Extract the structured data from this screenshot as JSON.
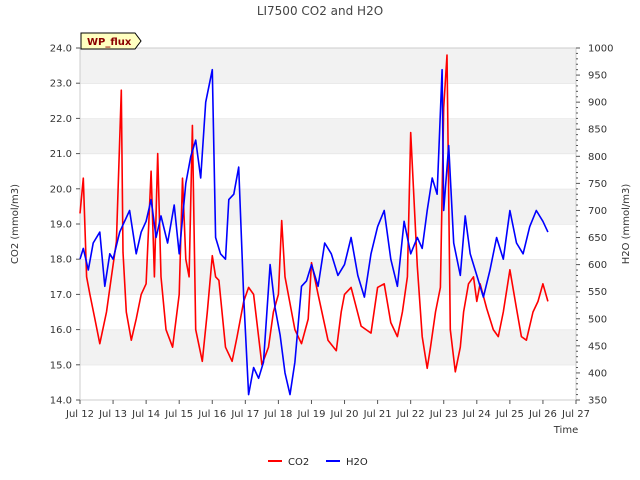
{
  "chart_data": {
    "type": "line",
    "title": "LI7500 CO2 and H2O",
    "badge": "WP_flux",
    "xlabel": "Time",
    "ylabel_left": "CO2 (mmol/m3)",
    "ylabel_right": "H2O (mmol/m3)",
    "x_ticks": [
      "Jul 12",
      "Jul 13",
      "Jul 14",
      "Jul 15",
      "Jul 16",
      "Jul 17",
      "Jul 18",
      "Jul 19",
      "Jul 20",
      "Jul 21",
      "Jul 22",
      "Jul 23",
      "Jul 24",
      "Jul 25",
      "Jul 26",
      "Jul 27"
    ],
    "xlim": [
      12,
      27
    ],
    "ylim_left": [
      14.0,
      24.0
    ],
    "ylim_right": [
      350,
      1000
    ],
    "y_ticks_left": [
      "14.0",
      "15.0",
      "16.0",
      "17.0",
      "18.0",
      "19.0",
      "20.0",
      "21.0",
      "22.0",
      "23.0",
      "24.0"
    ],
    "y_ticks_right": [
      "350",
      "400",
      "450",
      "500",
      "550",
      "600",
      "650",
      "700",
      "750",
      "800",
      "850",
      "900",
      "950",
      "1000"
    ],
    "grid": "horizontal bands",
    "legend_position": "bottom-center",
    "series": [
      {
        "name": "CO2",
        "axis": "left",
        "color": "#ff0000",
        "x": [
          12.0,
          12.1,
          12.2,
          12.3,
          12.45,
          12.6,
          12.8,
          12.95,
          13.1,
          13.25,
          13.3,
          13.4,
          13.55,
          13.7,
          13.85,
          14.0,
          14.15,
          14.25,
          14.35,
          14.45,
          14.6,
          14.8,
          15.0,
          15.1,
          15.2,
          15.3,
          15.4,
          15.5,
          15.7,
          15.85,
          16.0,
          16.1,
          16.2,
          16.4,
          16.6,
          16.75,
          16.95,
          17.1,
          17.25,
          17.5,
          17.7,
          17.85,
          18.0,
          18.1,
          18.2,
          18.3,
          18.5,
          18.7,
          18.9,
          19.0,
          19.2,
          19.5,
          19.75,
          19.9,
          20.0,
          20.2,
          20.5,
          20.8,
          21.0,
          21.2,
          21.4,
          21.6,
          21.75,
          21.9,
          22.0,
          22.2,
          22.35,
          22.5,
          22.6,
          22.75,
          22.9,
          23.0,
          23.1,
          23.2,
          23.35,
          23.5,
          23.6,
          23.75,
          23.9,
          24.0,
          24.1,
          24.3,
          24.5,
          24.65,
          24.8,
          25.0,
          25.2,
          25.35,
          25.5,
          25.7,
          25.85,
          26.0,
          26.15
        ],
        "y": [
          19.3,
          20.3,
          17.5,
          17.0,
          16.3,
          15.6,
          16.5,
          17.5,
          18.5,
          22.8,
          18.2,
          16.5,
          15.7,
          16.3,
          17.0,
          17.3,
          20.5,
          17.5,
          21.0,
          17.5,
          16.0,
          15.5,
          17.0,
          20.3,
          18.0,
          17.5,
          21.8,
          16.0,
          15.1,
          16.5,
          18.1,
          17.5,
          17.4,
          15.5,
          15.1,
          15.8,
          16.8,
          17.2,
          17.0,
          15.0,
          15.5,
          16.5,
          17.0,
          19.1,
          17.5,
          17.0,
          16.0,
          15.6,
          16.3,
          17.9,
          17.0,
          15.7,
          15.4,
          16.5,
          17.0,
          17.2,
          16.1,
          15.9,
          17.2,
          17.3,
          16.2,
          15.8,
          16.5,
          17.5,
          21.6,
          17.8,
          15.8,
          14.9,
          15.5,
          16.5,
          17.2,
          22.3,
          23.8,
          16.0,
          14.8,
          15.5,
          16.5,
          17.3,
          17.5,
          16.8,
          17.3,
          16.6,
          16.0,
          15.8,
          16.5,
          17.7,
          16.6,
          15.8,
          15.7,
          16.5,
          16.8,
          17.3,
          16.8
        ]
      },
      {
        "name": "H2O",
        "axis": "right",
        "color": "#0000ff",
        "x": [
          12.0,
          12.1,
          12.25,
          12.4,
          12.6,
          12.75,
          12.9,
          13.0,
          13.2,
          13.35,
          13.5,
          13.7,
          13.85,
          14.0,
          14.15,
          14.3,
          14.45,
          14.65,
          14.85,
          15.0,
          15.2,
          15.35,
          15.5,
          15.65,
          15.8,
          16.0,
          16.1,
          16.25,
          16.4,
          16.5,
          16.65,
          16.8,
          16.95,
          17.1,
          17.25,
          17.4,
          17.55,
          17.75,
          17.9,
          18.05,
          18.2,
          18.35,
          18.5,
          18.7,
          18.85,
          19.0,
          19.2,
          19.4,
          19.6,
          19.8,
          20.0,
          20.2,
          20.4,
          20.6,
          20.8,
          21.0,
          21.2,
          21.4,
          21.6,
          21.8,
          22.0,
          22.2,
          22.35,
          22.5,
          22.65,
          22.8,
          22.95,
          23.0,
          23.15,
          23.3,
          23.5,
          23.65,
          23.8,
          24.0,
          24.2,
          24.4,
          24.6,
          24.8,
          25.0,
          25.2,
          25.4,
          25.6,
          25.8,
          26.0,
          26.15
        ],
        "y": [
          610,
          630,
          590,
          640,
          660,
          560,
          620,
          610,
          660,
          680,
          700,
          620,
          660,
          680,
          720,
          650,
          690,
          640,
          710,
          620,
          750,
          800,
          830,
          760,
          900,
          960,
          650,
          620,
          610,
          720,
          730,
          780,
          540,
          360,
          410,
          390,
          420,
          600,
          520,
          470,
          400,
          360,
          420,
          560,
          570,
          600,
          560,
          640,
          620,
          580,
          600,
          650,
          580,
          540,
          620,
          670,
          700,
          610,
          560,
          680,
          620,
          650,
          630,
          700,
          760,
          730,
          960,
          700,
          820,
          640,
          580,
          690,
          620,
          580,
          540,
          590,
          650,
          610,
          700,
          640,
          620,
          670,
          700,
          680,
          660
        ]
      }
    ]
  }
}
